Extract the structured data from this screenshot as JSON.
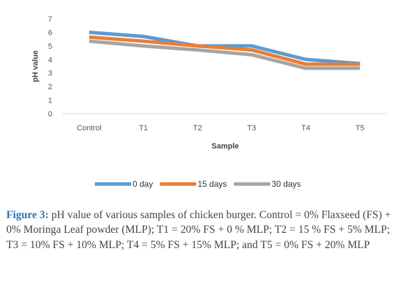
{
  "chart_data": {
    "type": "line",
    "title": "",
    "xlabel": "Sample",
    "ylabel": "pH value",
    "categories": [
      "Control",
      "T1",
      "T2",
      "T3",
      "T4",
      "T5"
    ],
    "ylim": [
      0,
      7
    ],
    "yticks": [
      "0",
      "1",
      "2",
      "3",
      "4",
      "5",
      "6",
      "7"
    ],
    "grid": false,
    "legend_position": "bottom",
    "series": [
      {
        "name": "0 day",
        "color": "#5b9bd5",
        "values": [
          6.0,
          5.7,
          5.0,
          5.0,
          4.0,
          3.7
        ]
      },
      {
        "name": "15 days",
        "color": "#ed7d31",
        "values": [
          5.65,
          5.35,
          5.0,
          4.7,
          3.65,
          3.65
        ]
      },
      {
        "name": "30 days",
        "color": "#a5a5a5",
        "values": [
          5.35,
          5.0,
          4.7,
          4.35,
          3.35,
          3.35
        ]
      }
    ]
  },
  "caption": {
    "label": "Figure 3:",
    "text": "pH value of various samples of chicken burger. Control = 0% Flaxseed (FS) + 0% Moringa Leaf powder (MLP); T1 = 20% FS + 0 % MLP; T2 = 15 % FS + 5% MLP; T3 = 10% FS + 10% MLP; T4 = 5% FS + 15% MLP; and T5 = 0% FS + 20% MLP"
  }
}
